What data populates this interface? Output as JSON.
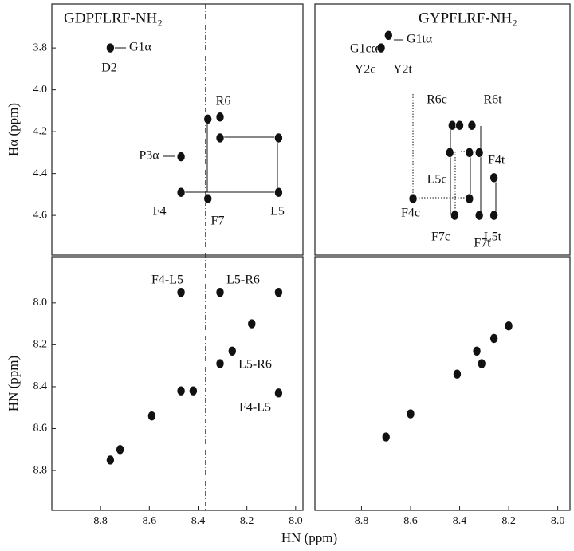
{
  "chart_data": [
    {
      "type": "scatter",
      "title": "GDPFLRF-NH₂",
      "y_label": "Hα (ppm)",
      "color": "#111111",
      "xlim": [
        9.0,
        7.97
      ],
      "ylim": [
        3.59,
        4.79
      ],
      "yticks": [
        3.8,
        {
          "value": 4.0,
          "label": "4.0"
        },
        4.2,
        4.4,
        4.6
      ],
      "x": [
        8.76,
        8.36,
        8.31,
        8.31,
        8.07,
        8.47,
        8.47,
        8.36,
        8.07
      ],
      "y": [
        3.8,
        4.14,
        4.13,
        4.23,
        4.23,
        4.32,
        4.49,
        4.52,
        4.49
      ],
      "annotations": [
        "G1α",
        "D2",
        "R6",
        "P3α",
        "F4",
        "F7",
        "L5"
      ]
    },
    {
      "type": "scatter",
      "title": "GYPFLRF-NH₂",
      "color": "#111111",
      "xlim": [
        8.99,
        7.95
      ],
      "ylim": [
        3.59,
        4.79
      ],
      "x": [
        8.72,
        8.69,
        8.43,
        8.4,
        8.35,
        8.44,
        8.36,
        8.32,
        8.26,
        8.36,
        8.59,
        8.42,
        8.32,
        8.26
      ],
      "y": [
        3.8,
        3.74,
        4.17,
        4.17,
        4.17,
        4.3,
        4.3,
        4.3,
        4.42,
        4.52,
        4.52,
        4.6,
        4.6,
        4.6
      ],
      "annotations": [
        "G1cα",
        "G1tα",
        "Y2c",
        "Y2t",
        "R6c",
        "R6t",
        "F4t",
        "L5c",
        "F4c",
        "F7c",
        "F7t",
        "L5t"
      ]
    },
    {
      "type": "scatter",
      "y_label": "HN (ppm)",
      "x_label": "HN (ppm)",
      "color": "#111111",
      "xlim": [
        9.0,
        7.97
      ],
      "ylim": [
        7.78,
        8.99
      ],
      "xticks": [
        8.8,
        8.6,
        8.4,
        8.2,
        {
          "value": 8.0,
          "label": "8.0"
        }
      ],
      "yticks": [
        {
          "value": 8.0,
          "label": "8.0"
        },
        8.2,
        8.4,
        8.6,
        8.8
      ],
      "x": [
        8.47,
        8.31,
        8.07,
        8.18,
        8.31,
        8.26,
        8.42,
        8.47,
        8.59,
        8.76,
        8.72,
        8.07
      ],
      "y": [
        7.95,
        7.95,
        7.95,
        8.1,
        8.29,
        8.23,
        8.42,
        8.42,
        8.54,
        8.75,
        8.7,
        8.43
      ],
      "annotations": [
        "F4-L5",
        "L5-R6",
        "L5-R6",
        "F4-L5"
      ]
    },
    {
      "type": "scatter",
      "color": "#111111",
      "xlim": [
        8.99,
        7.95
      ],
      "ylim": [
        7.78,
        8.99
      ],
      "xticks": [
        8.8,
        8.6,
        8.4,
        8.2,
        {
          "value": 8.0,
          "label": "8.0"
        }
      ],
      "x": [
        8.7,
        8.6,
        8.41,
        8.33,
        8.26,
        8.2,
        8.31
      ],
      "y": [
        8.64,
        8.53,
        8.34,
        8.23,
        8.17,
        8.11,
        8.29
      ]
    }
  ]
}
